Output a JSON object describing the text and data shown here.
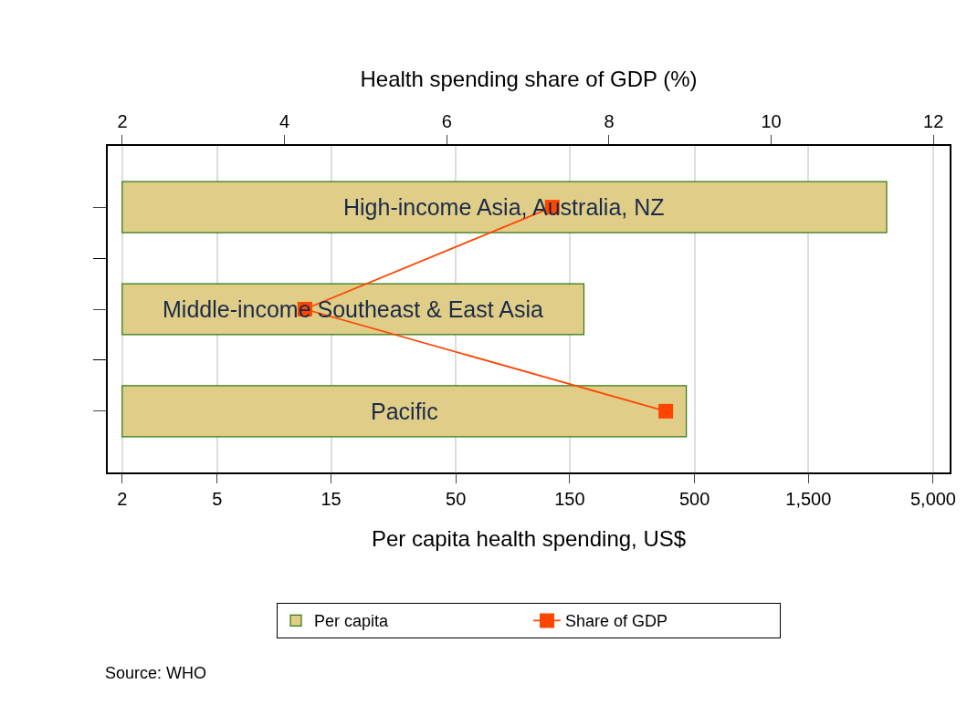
{
  "chart_data": {
    "type": "bar",
    "orientation": "horizontal",
    "categories": [
      "High-income Asia, Australia, NZ",
      "Middle-income Southeast & East Asia",
      "Pacific"
    ],
    "series": [
      {
        "name": "Per capita",
        "color": "#e0cd87",
        "values": [
          3190,
          170,
          460
        ],
        "base": [
          2,
          2,
          2
        ]
      },
      {
        "name": "Share of GDP",
        "type": "line",
        "axis": "x2",
        "color": "#ff4500",
        "values": [
          7.3,
          4.25,
          8.7
        ],
        "marker": "square"
      }
    ],
    "xlabel": "Per capita health spending, US$",
    "x2label": "Health spending share of GDP (%)",
    "log": "x",
    "xlim": [
      1.74,
      5860
    ],
    "xticks": [
      2,
      5,
      15,
      50,
      150,
      500,
      {
        "value": 1500,
        "label": "1,500"
      },
      {
        "value": 5000,
        "label": "5,000"
      }
    ],
    "x2lim": [
      1.82,
      12.2
    ],
    "x2ticks": [
      2,
      4,
      6,
      8,
      10,
      12
    ],
    "tick_labels": "x",
    "grid": "x",
    "legend": "bottom",
    "annotations": [
      "Source: WHO"
    ]
  }
}
